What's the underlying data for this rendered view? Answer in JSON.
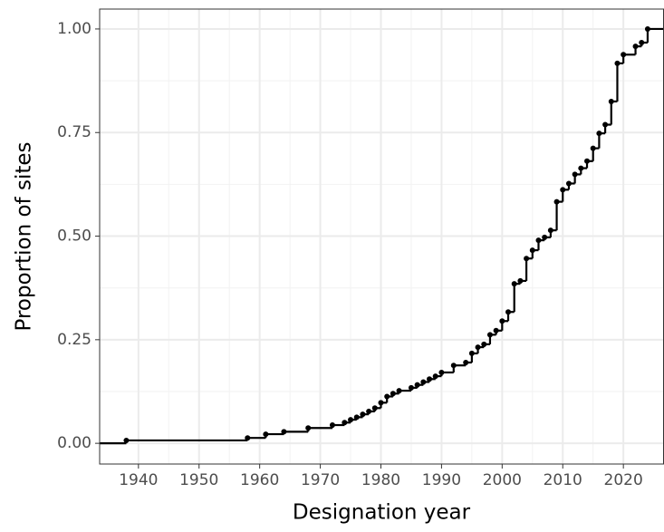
{
  "chart_data": {
    "type": "step",
    "x_label": "Designation year",
    "y_label": "Proportion of sites",
    "x": [
      1938,
      1958,
      1961,
      1964,
      1968,
      1972,
      1974,
      1975,
      1976,
      1977,
      1978,
      1979,
      1980,
      1981,
      1982,
      1983,
      1985,
      1986,
      1987,
      1988,
      1989,
      1990,
      1992,
      1994,
      1995,
      1996,
      1997,
      1998,
      1999,
      2000,
      2001,
      2002,
      2003,
      2004,
      2005,
      2006,
      2007,
      2008,
      2009,
      2010,
      2011,
      2012,
      2013,
      2014,
      2015,
      2016,
      2017,
      2018,
      2019,
      2020,
      2022,
      2023,
      2024
    ],
    "values": [
      0.007,
      0.013,
      0.022,
      0.028,
      0.037,
      0.044,
      0.05,
      0.057,
      0.063,
      0.07,
      0.077,
      0.085,
      0.098,
      0.113,
      0.12,
      0.127,
      0.134,
      0.141,
      0.148,
      0.155,
      0.162,
      0.171,
      0.188,
      0.195,
      0.217,
      0.232,
      0.239,
      0.262,
      0.272,
      0.295,
      0.317,
      0.385,
      0.392,
      0.446,
      0.466,
      0.49,
      0.497,
      0.514,
      0.583,
      0.612,
      0.627,
      0.649,
      0.664,
      0.681,
      0.712,
      0.748,
      0.769,
      0.825,
      0.917,
      0.938,
      0.958,
      0.967,
      1.0
    ],
    "color": "#000000",
    "xlim": [
      1933.6,
      2026.7
    ],
    "xticks": [
      1940,
      1950,
      1960,
      1970,
      1980,
      1990,
      2000,
      2010,
      2020
    ],
    "ylim": [
      -0.05,
      1.048
    ],
    "yticks": [
      {
        "value": 0,
        "label": "0.00"
      },
      {
        "value": 0.25,
        "label": "0.25"
      },
      {
        "value": 0.5,
        "label": "0.50"
      },
      {
        "value": 0.75,
        "label": "0.75"
      },
      {
        "value": 1,
        "label": "1.00"
      }
    ],
    "grid": true
  }
}
